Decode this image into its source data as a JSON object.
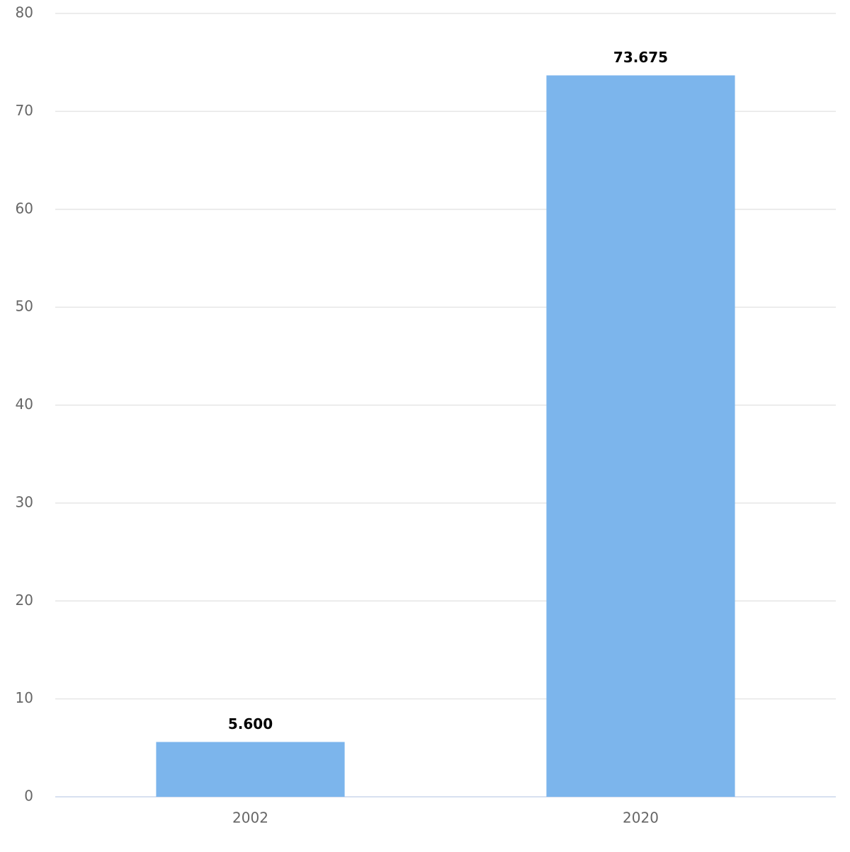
{
  "chart_data": {
    "type": "bar",
    "categories": [
      "2002",
      "2020"
    ],
    "values": [
      5.6,
      73.675
    ],
    "value_labels": [
      "5.600",
      "73.675"
    ],
    "color": "#7cb5ec",
    "ylim": [
      0,
      80
    ],
    "yticks": [
      0,
      10,
      20,
      30,
      40,
      50,
      60,
      70,
      80
    ],
    "grid": true
  }
}
